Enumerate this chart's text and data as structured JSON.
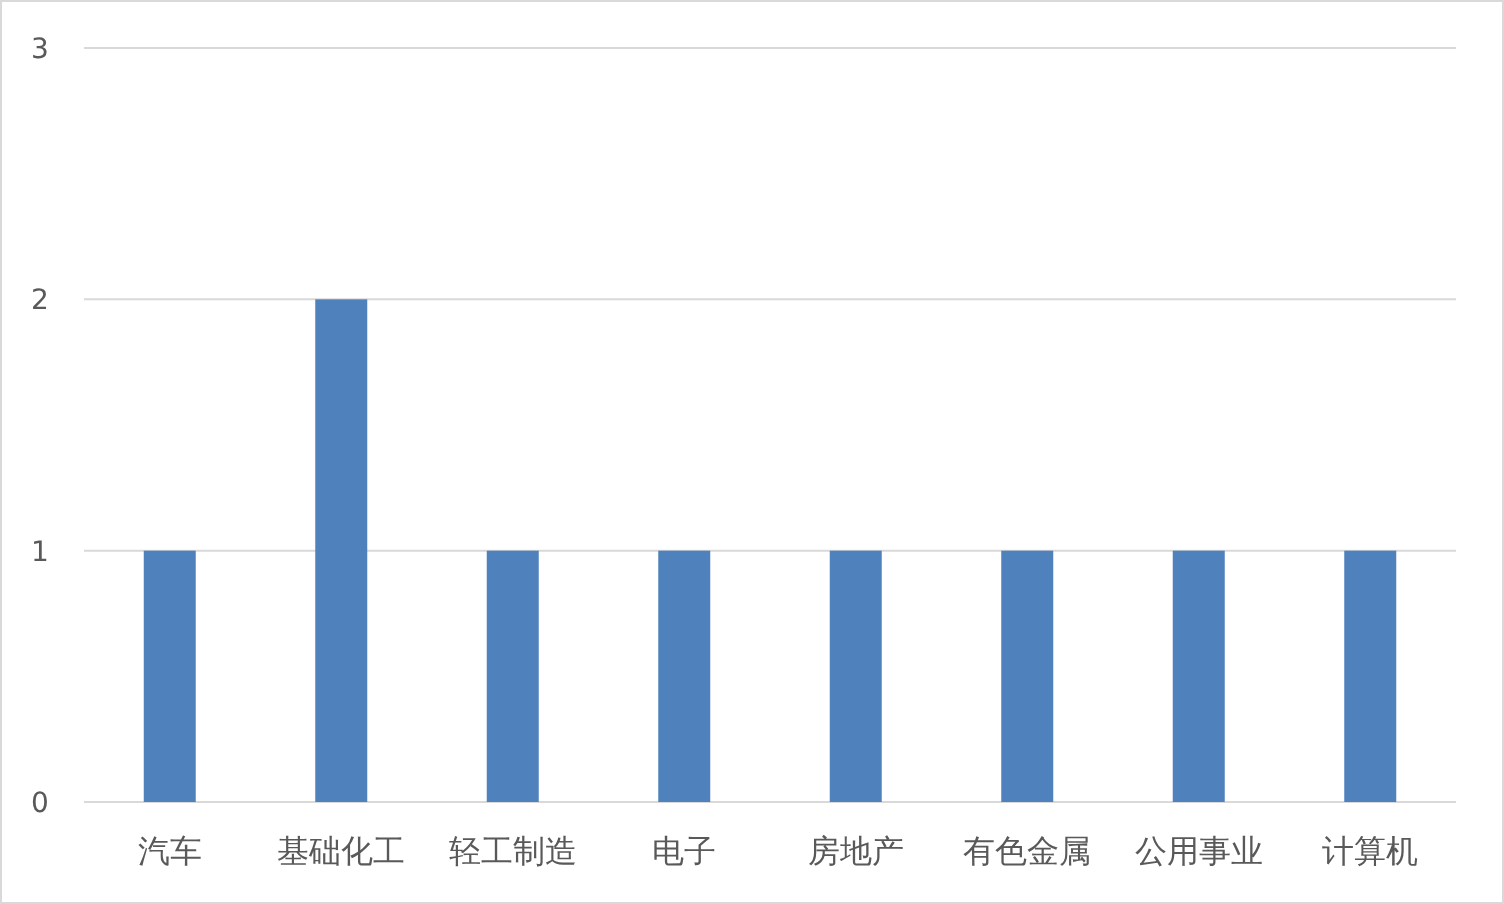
{
  "chart_data": {
    "type": "bar",
    "categories": [
      "汽车",
      "基础化工",
      "轻工制造",
      "电子",
      "房地产",
      "有色金属",
      "公用事业",
      "计算机"
    ],
    "values": [
      1,
      2,
      1,
      1,
      1,
      1,
      1,
      1
    ],
    "color": "#4f81bd",
    "ylim": [
      0,
      3
    ],
    "yticks": [
      0,
      1,
      2,
      3
    ],
    "grid": "y"
  }
}
